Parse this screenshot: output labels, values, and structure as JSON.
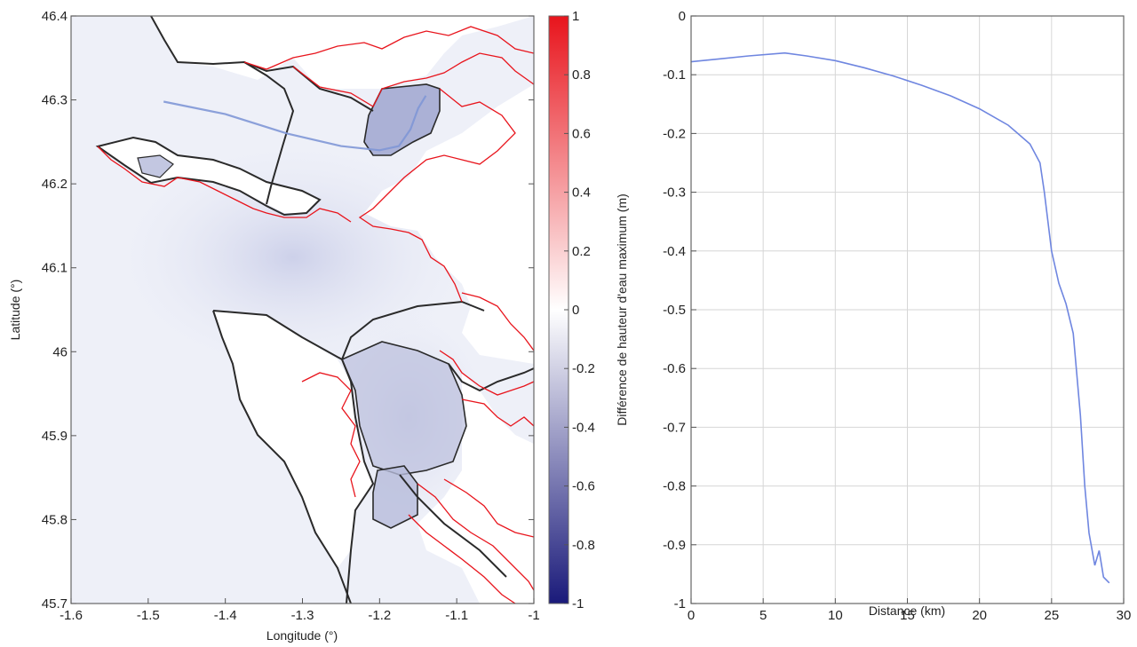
{
  "chart_data": [
    {
      "type": "heatmap",
      "xlabel": "Longitude (°)",
      "ylabel": "Latitude (°)",
      "xlim": [
        -1.6,
        -1.0
      ],
      "ylim": [
        45.7,
        46.4
      ],
      "x_ticks": [
        "-1.6",
        "-1.5",
        "-1.4",
        "-1.3",
        "-1.2",
        "-1.1",
        "-1"
      ],
      "y_ticks": [
        "46.4",
        "46.3",
        "46.2",
        "46.1",
        "46",
        "45.9",
        "45.8",
        "45.7"
      ],
      "colorbar": {
        "label": "Différence de hauteur d'eau maximum (m)",
        "range": [
          -1,
          1
        ],
        "ticks": [
          "1",
          "0.8",
          "0.6",
          "0.4",
          "0.2",
          "0",
          "-0.2",
          "-0.4",
          "-0.6",
          "-0.8",
          "-1"
        ],
        "colors": [
          "#1a1a7a",
          "#ffffff",
          "#e8141c"
        ]
      },
      "grid": false,
      "profile_line": {
        "color": "#7f97d6",
        "points": [
          [
            -1.48,
            46.298
          ],
          [
            -1.4,
            46.283
          ],
          [
            -1.32,
            46.26
          ],
          [
            -1.25,
            46.245
          ],
          [
            -1.2,
            46.24
          ],
          [
            -1.175,
            46.245
          ],
          [
            -1.16,
            46.265
          ],
          [
            -1.15,
            46.29
          ],
          [
            -1.14,
            46.305
          ]
        ]
      },
      "overlay_colors": {
        "coastline_black": "#2a2a2a",
        "coastline_red": "#e8141c"
      }
    },
    {
      "type": "line",
      "xlabel": "Distance (km)",
      "ylabel": "",
      "xlim": [
        0,
        30
      ],
      "ylim": [
        -1,
        0
      ],
      "x_ticks": [
        "0",
        "5",
        "10",
        "15",
        "20",
        "25",
        "30"
      ],
      "y_ticks": [
        "0",
        "-0.1",
        "-0.2",
        "-0.3",
        "-0.4",
        "-0.5",
        "-0.6",
        "-0.7",
        "-0.8",
        "-0.9",
        "-1"
      ],
      "grid": true,
      "series": [
        {
          "color": "#6f86e0",
          "x": [
            0,
            2,
            4,
            6.5,
            8,
            10,
            12,
            14,
            16,
            18,
            20,
            22,
            23.5,
            24.2,
            24.5,
            25,
            25.5,
            26,
            26.5,
            27,
            27.3,
            27.6,
            28,
            28.3,
            28.6,
            29
          ],
          "y": [
            -0.078,
            -0.073,
            -0.068,
            -0.063,
            -0.068,
            -0.076,
            -0.088,
            -0.102,
            -0.118,
            -0.136,
            -0.158,
            -0.186,
            -0.218,
            -0.25,
            -0.3,
            -0.4,
            -0.455,
            -0.49,
            -0.54,
            -0.68,
            -0.8,
            -0.88,
            -0.935,
            -0.91,
            -0.955,
            -0.965
          ]
        }
      ]
    }
  ]
}
